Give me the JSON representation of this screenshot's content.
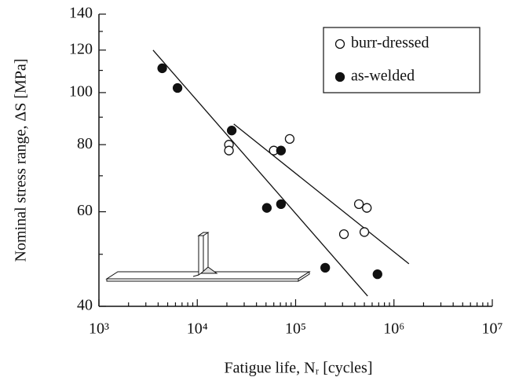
{
  "chart_data": {
    "type": "scatter",
    "xlabel": "Fatigue life, Nᵣ  [cycles]",
    "ylabel": "Nominal stress range, ΔS  [MPa]",
    "xscale": "log",
    "yscale": "log",
    "xlim": [
      1000,
      10000000
    ],
    "ylim": [
      40,
      140
    ],
    "xticks": [
      {
        "value": 1000,
        "label": "10³"
      },
      {
        "value": 10000,
        "label": "10⁴"
      },
      {
        "value": 100000,
        "label": "10⁵"
      },
      {
        "value": 1000000,
        "label": "10⁶"
      },
      {
        "value": 10000000,
        "label": "10⁷"
      }
    ],
    "yticks": [
      40,
      60,
      80,
      100,
      120,
      140
    ],
    "yminorticks": [
      50,
      70,
      90,
      110,
      130
    ],
    "xminorticks": true,
    "legend": "upper right",
    "series": [
      {
        "name": "burr-dressed",
        "color": "#111111",
        "marker": "open",
        "x": [
          21000,
          21000,
          60000,
          87000,
          440000,
          530000,
          310000,
          500000
        ],
        "values": [
          80,
          78,
          78,
          82,
          62,
          61,
          54.5,
          55
        ]
      },
      {
        "name": "as-welded",
        "color": "#111111",
        "marker": "filled",
        "x": [
          4400,
          6300,
          22400,
          71000,
          51000,
          71000,
          200000,
          680000
        ],
        "values": [
          111,
          102,
          85,
          78,
          61,
          62,
          47.2,
          45.9
        ]
      }
    ],
    "fit_lines": [
      {
        "x": [
          3550,
          540000
        ],
        "values": [
          120,
          41.8
        ]
      },
      {
        "x": [
          23500,
          1420000
        ],
        "values": [
          87.4,
          48
        ]
      }
    ]
  }
}
